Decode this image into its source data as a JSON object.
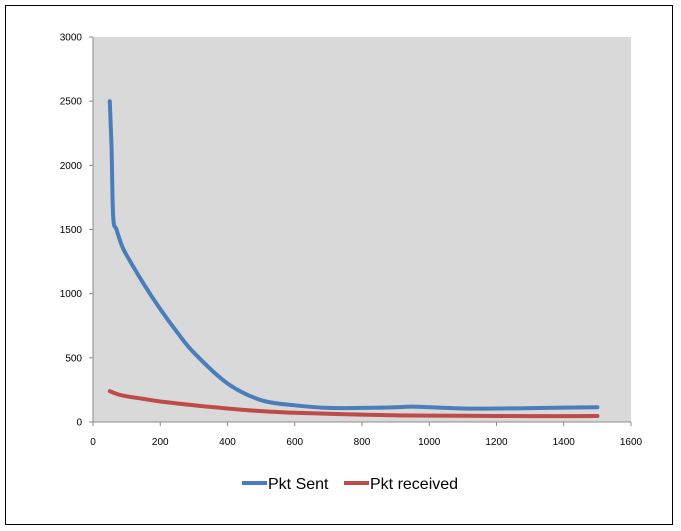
{
  "chart_data": {
    "type": "line",
    "title": "",
    "xlabel": "",
    "ylabel": "",
    "xlim": [
      0,
      1600
    ],
    "ylim": [
      0,
      3000
    ],
    "x_ticks": [
      "0",
      "200",
      "400",
      "600",
      "800",
      "1000",
      "1200",
      "1400",
      "1600"
    ],
    "y_ticks": [
      "0",
      "500",
      "1000",
      "1500",
      "2000",
      "2500",
      "3000"
    ],
    "grid": false,
    "plot_background": "#d9d9d9",
    "legend_position": "bottom",
    "series": [
      {
        "name": "Pkt Sent",
        "color": "#4a7ebb",
        "x": [
          50,
          55,
          60,
          70,
          85,
          100,
          150,
          200,
          250,
          300,
          400,
          500,
          600,
          700,
          800,
          900,
          950,
          1000,
          1100,
          1200,
          1300,
          1400,
          1500
        ],
        "y": [
          2500,
          2150,
          1600,
          1500,
          1380,
          1300,
          1080,
          880,
          700,
          540,
          300,
          170,
          130,
          110,
          110,
          115,
          120,
          115,
          105,
          105,
          108,
          112,
          115
        ]
      },
      {
        "name": "Pkt received",
        "color": "#be4b48",
        "x": [
          50,
          75,
          100,
          150,
          200,
          300,
          400,
          500,
          600,
          700,
          800,
          900,
          1000,
          1100,
          1200,
          1300,
          1400,
          1500
        ],
        "y": [
          240,
          215,
          200,
          180,
          160,
          130,
          105,
          85,
          72,
          64,
          58,
          52,
          50,
          48,
          47,
          46,
          46,
          47
        ]
      }
    ]
  }
}
